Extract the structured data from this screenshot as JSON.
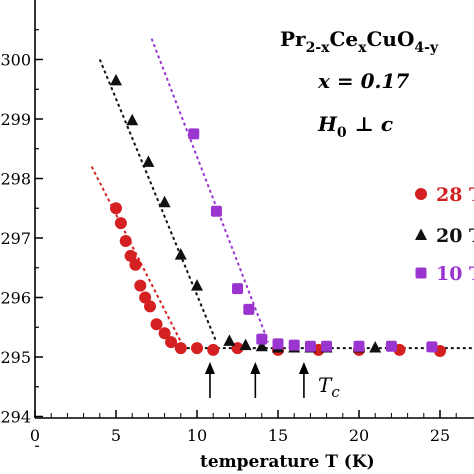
{
  "chart_data": {
    "type": "scatter",
    "title": "",
    "xlabel": "temperature T (K)",
    "ylabel": "",
    "xlim": [
      0,
      27
    ],
    "ylim": [
      294,
      301.3
    ],
    "x_ticks": [
      0,
      5,
      10,
      15,
      20,
      25
    ],
    "y_ticks": [
      294,
      295,
      296,
      297,
      298,
      299,
      300
    ],
    "y_tick_labels": [
      "294",
      "295",
      "296",
      "297",
      "298",
      "299",
      "300"
    ],
    "grid": false,
    "legend_position": "right",
    "annotations": {
      "formula_base_1": "Pr",
      "formula_sub_1": "2-x",
      "formula_base_2": "Ce",
      "formula_sub_2": "x",
      "formula_base_3": "CuO",
      "formula_sub_3": "4-y",
      "doping": "x = 0.17",
      "field_H": "H",
      "field_sub": "0",
      "field_perp": "⊥ c",
      "tc_label": "T",
      "tc_sub": "c"
    },
    "tc_arrows_x": [
      10.8,
      13.6,
      16.6
    ],
    "baseline_y": 295.15,
    "series": [
      {
        "name": "28 T",
        "marker": "circle",
        "color": "#d42020",
        "points": [
          [
            5.0,
            297.5
          ],
          [
            5.3,
            297.25
          ],
          [
            5.6,
            296.95
          ],
          [
            5.9,
            296.7
          ],
          [
            6.2,
            296.55
          ],
          [
            6.5,
            296.2
          ],
          [
            6.8,
            296.0
          ],
          [
            7.1,
            295.85
          ],
          [
            7.5,
            295.55
          ],
          [
            8.0,
            295.4
          ],
          [
            8.4,
            295.25
          ],
          [
            9.0,
            295.15
          ],
          [
            10.0,
            295.15
          ],
          [
            11.0,
            295.12
          ],
          [
            12.5,
            295.15
          ],
          [
            15.0,
            295.12
          ],
          [
            17.5,
            295.12
          ],
          [
            20.0,
            295.12
          ],
          [
            22.5,
            295.12
          ],
          [
            25.0,
            295.1
          ]
        ],
        "fit_line": [
          [
            3.5,
            298.2
          ],
          [
            9.2,
            295.15
          ]
        ]
      },
      {
        "name": "20 T",
        "marker": "triangle",
        "color": "#111111",
        "points": [
          [
            5.0,
            299.65
          ],
          [
            6.0,
            298.98
          ],
          [
            7.0,
            298.28
          ],
          [
            8.0,
            297.6
          ],
          [
            9.0,
            296.72
          ],
          [
            10.0,
            296.2
          ],
          [
            12.0,
            295.27
          ],
          [
            13.0,
            295.2
          ],
          [
            14.0,
            295.18
          ],
          [
            15.0,
            295.16
          ],
          [
            16.0,
            295.16
          ],
          [
            17.0,
            295.16
          ],
          [
            18.0,
            295.16
          ],
          [
            20.0,
            295.16
          ],
          [
            21.0,
            295.16
          ]
        ],
        "fit_line": [
          [
            4.0,
            300.0
          ],
          [
            11.2,
            295.25
          ]
        ]
      },
      {
        "name": "10 T",
        "marker": "square",
        "color": "#9a35d0",
        "points": [
          [
            9.8,
            298.75
          ],
          [
            11.2,
            297.45
          ],
          [
            12.5,
            296.15
          ],
          [
            13.2,
            295.8
          ],
          [
            14.0,
            295.3
          ],
          [
            15.0,
            295.22
          ],
          [
            16.0,
            295.2
          ],
          [
            17.0,
            295.18
          ],
          [
            18.0,
            295.18
          ],
          [
            20.0,
            295.18
          ],
          [
            22.0,
            295.18
          ],
          [
            24.5,
            295.17
          ]
        ],
        "fit_line": [
          [
            7.2,
            300.35
          ],
          [
            14.4,
            295.25
          ]
        ]
      }
    ]
  }
}
